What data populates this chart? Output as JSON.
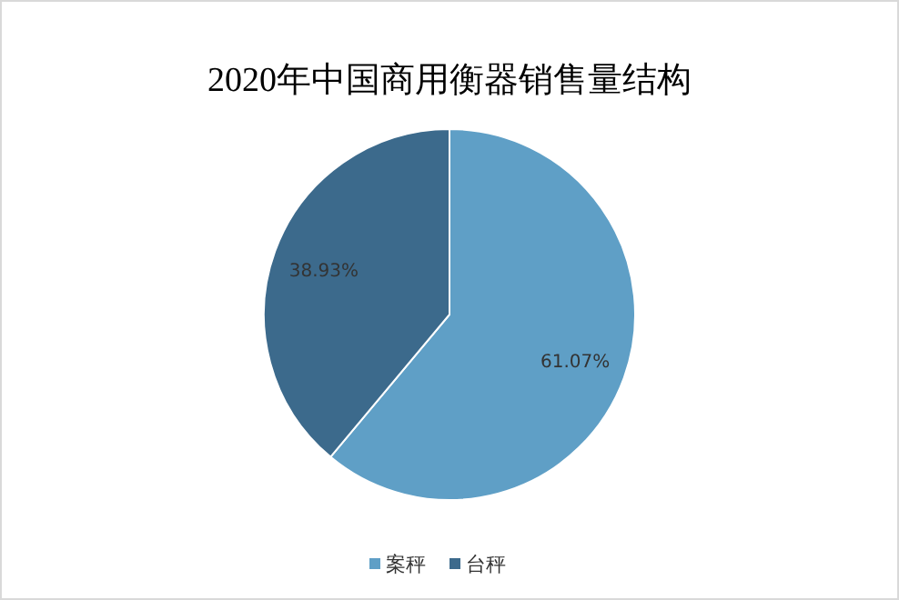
{
  "chart_data": {
    "type": "pie",
    "title": "2020年中国商用衡器销售量结构",
    "categories": [
      "案秤",
      "台秤"
    ],
    "values": [
      61.07,
      38.93
    ],
    "colors": [
      "#5f9fc6",
      "#3c6a8c"
    ],
    "value_labels": [
      "61.07%",
      "38.93%"
    ],
    "legend": "bottom"
  }
}
